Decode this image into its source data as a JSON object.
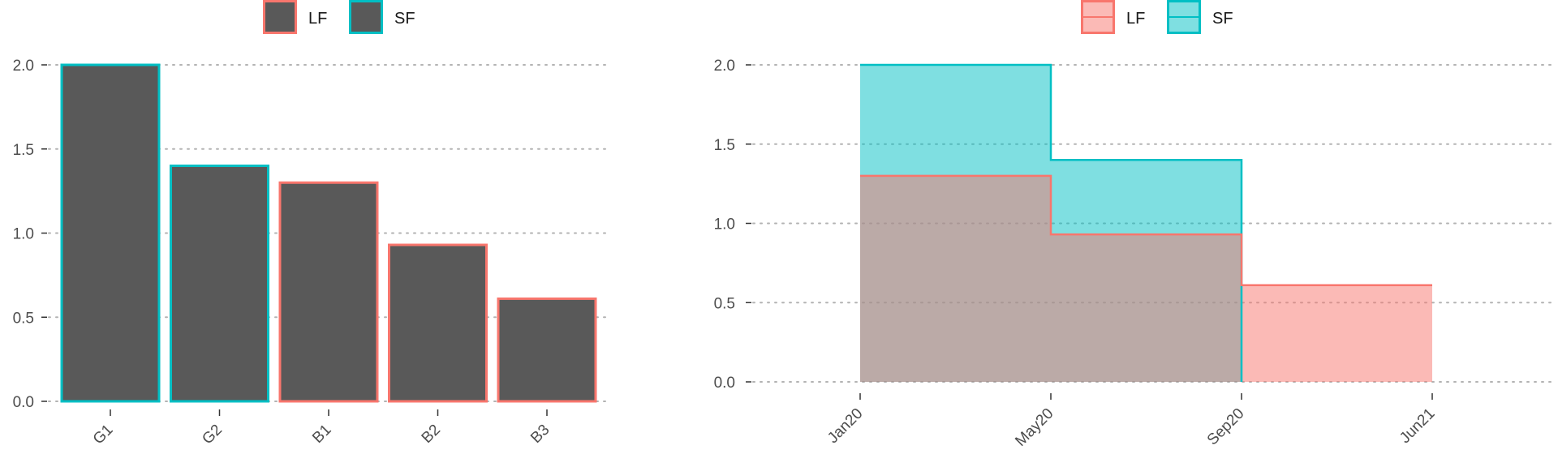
{
  "colors": {
    "lf": "#F8766D",
    "sf": "#00BFC4",
    "bar_fill": "#595959",
    "grid": "#b3b3b3",
    "tick": "#333333",
    "overlap_fill": "#7FBFBC"
  },
  "chart_data": [
    {
      "type": "bar",
      "legend": {
        "position": "top",
        "entries": [
          "LF",
          "SF"
        ]
      },
      "categories": [
        "G1",
        "G2",
        "B1",
        "B2",
        "B3"
      ],
      "values": [
        2.0,
        1.4,
        1.3,
        0.93,
        0.61
      ],
      "outline_group": [
        "SF",
        "SF",
        "LF",
        "LF",
        "LF"
      ],
      "ylim": [
        0,
        2.0
      ],
      "yticks": [
        "0.0",
        "0.5",
        "1.0",
        "1.5",
        "2.0"
      ],
      "grid": "horizontal-dotted"
    },
    {
      "type": "area",
      "step": true,
      "legend": {
        "position": "top",
        "entries": [
          "LF",
          "SF"
        ]
      },
      "x_ticks": [
        "Jan20",
        "May20",
        "Sep20",
        "Jun21"
      ],
      "ylim": [
        0,
        2.0
      ],
      "yticks": [
        "0.0",
        "0.5",
        "1.0",
        "1.5",
        "2.0"
      ],
      "grid": "horizontal-dotted",
      "series": [
        {
          "name": "SF",
          "segments": [
            {
              "x0": "Jan20",
              "x1": "May20",
              "y": 2.0
            },
            {
              "x0": "May20",
              "x1": "Sep20",
              "y": 1.4
            }
          ]
        },
        {
          "name": "LF",
          "segments": [
            {
              "x0": "Jan20",
              "x1": "May20",
              "y": 1.3
            },
            {
              "x0": "May20",
              "x1": "Sep20",
              "y": 0.93
            },
            {
              "x0": "Sep20",
              "x1": "Jun21",
              "y": 0.61
            }
          ]
        }
      ]
    }
  ]
}
